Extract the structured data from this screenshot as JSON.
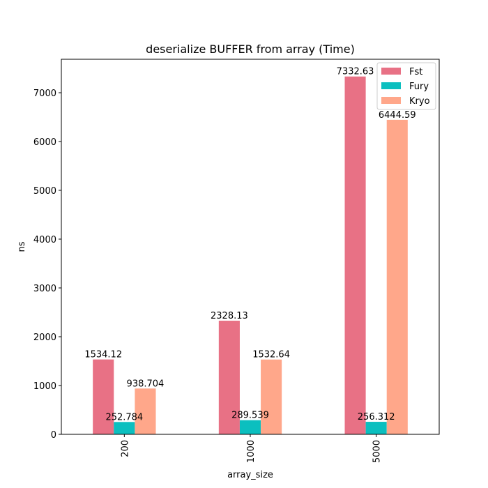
{
  "chart_data": {
    "type": "bar",
    "title": "deserialize BUFFER from array (Time)",
    "xlabel": "array_size",
    "ylabel": "ns",
    "categories": [
      "200",
      "1000",
      "5000"
    ],
    "series": [
      {
        "name": "Fst",
        "color": "#e87185",
        "values": [
          1534.12,
          2328.13,
          7332.63
        ],
        "labels": [
          "1534.12",
          "2328.13",
          "7332.63"
        ]
      },
      {
        "name": "Fury",
        "color": "#0bbfbf",
        "values": [
          252.784,
          289.539,
          256.312
        ],
        "labels": [
          "252.784",
          "289.539",
          "256.312"
        ]
      },
      {
        "name": "Kryo",
        "color": "#ffa78a",
        "values": [
          938.704,
          1532.64,
          6444.59
        ],
        "labels": [
          "938.704",
          "1532.64",
          "6444.59"
        ]
      }
    ],
    "ylim": [
      0,
      7686
    ],
    "yticks": [
      0,
      1000,
      2000,
      3000,
      4000,
      5000,
      6000,
      7000
    ],
    "grid": false,
    "legend": "top-right"
  }
}
